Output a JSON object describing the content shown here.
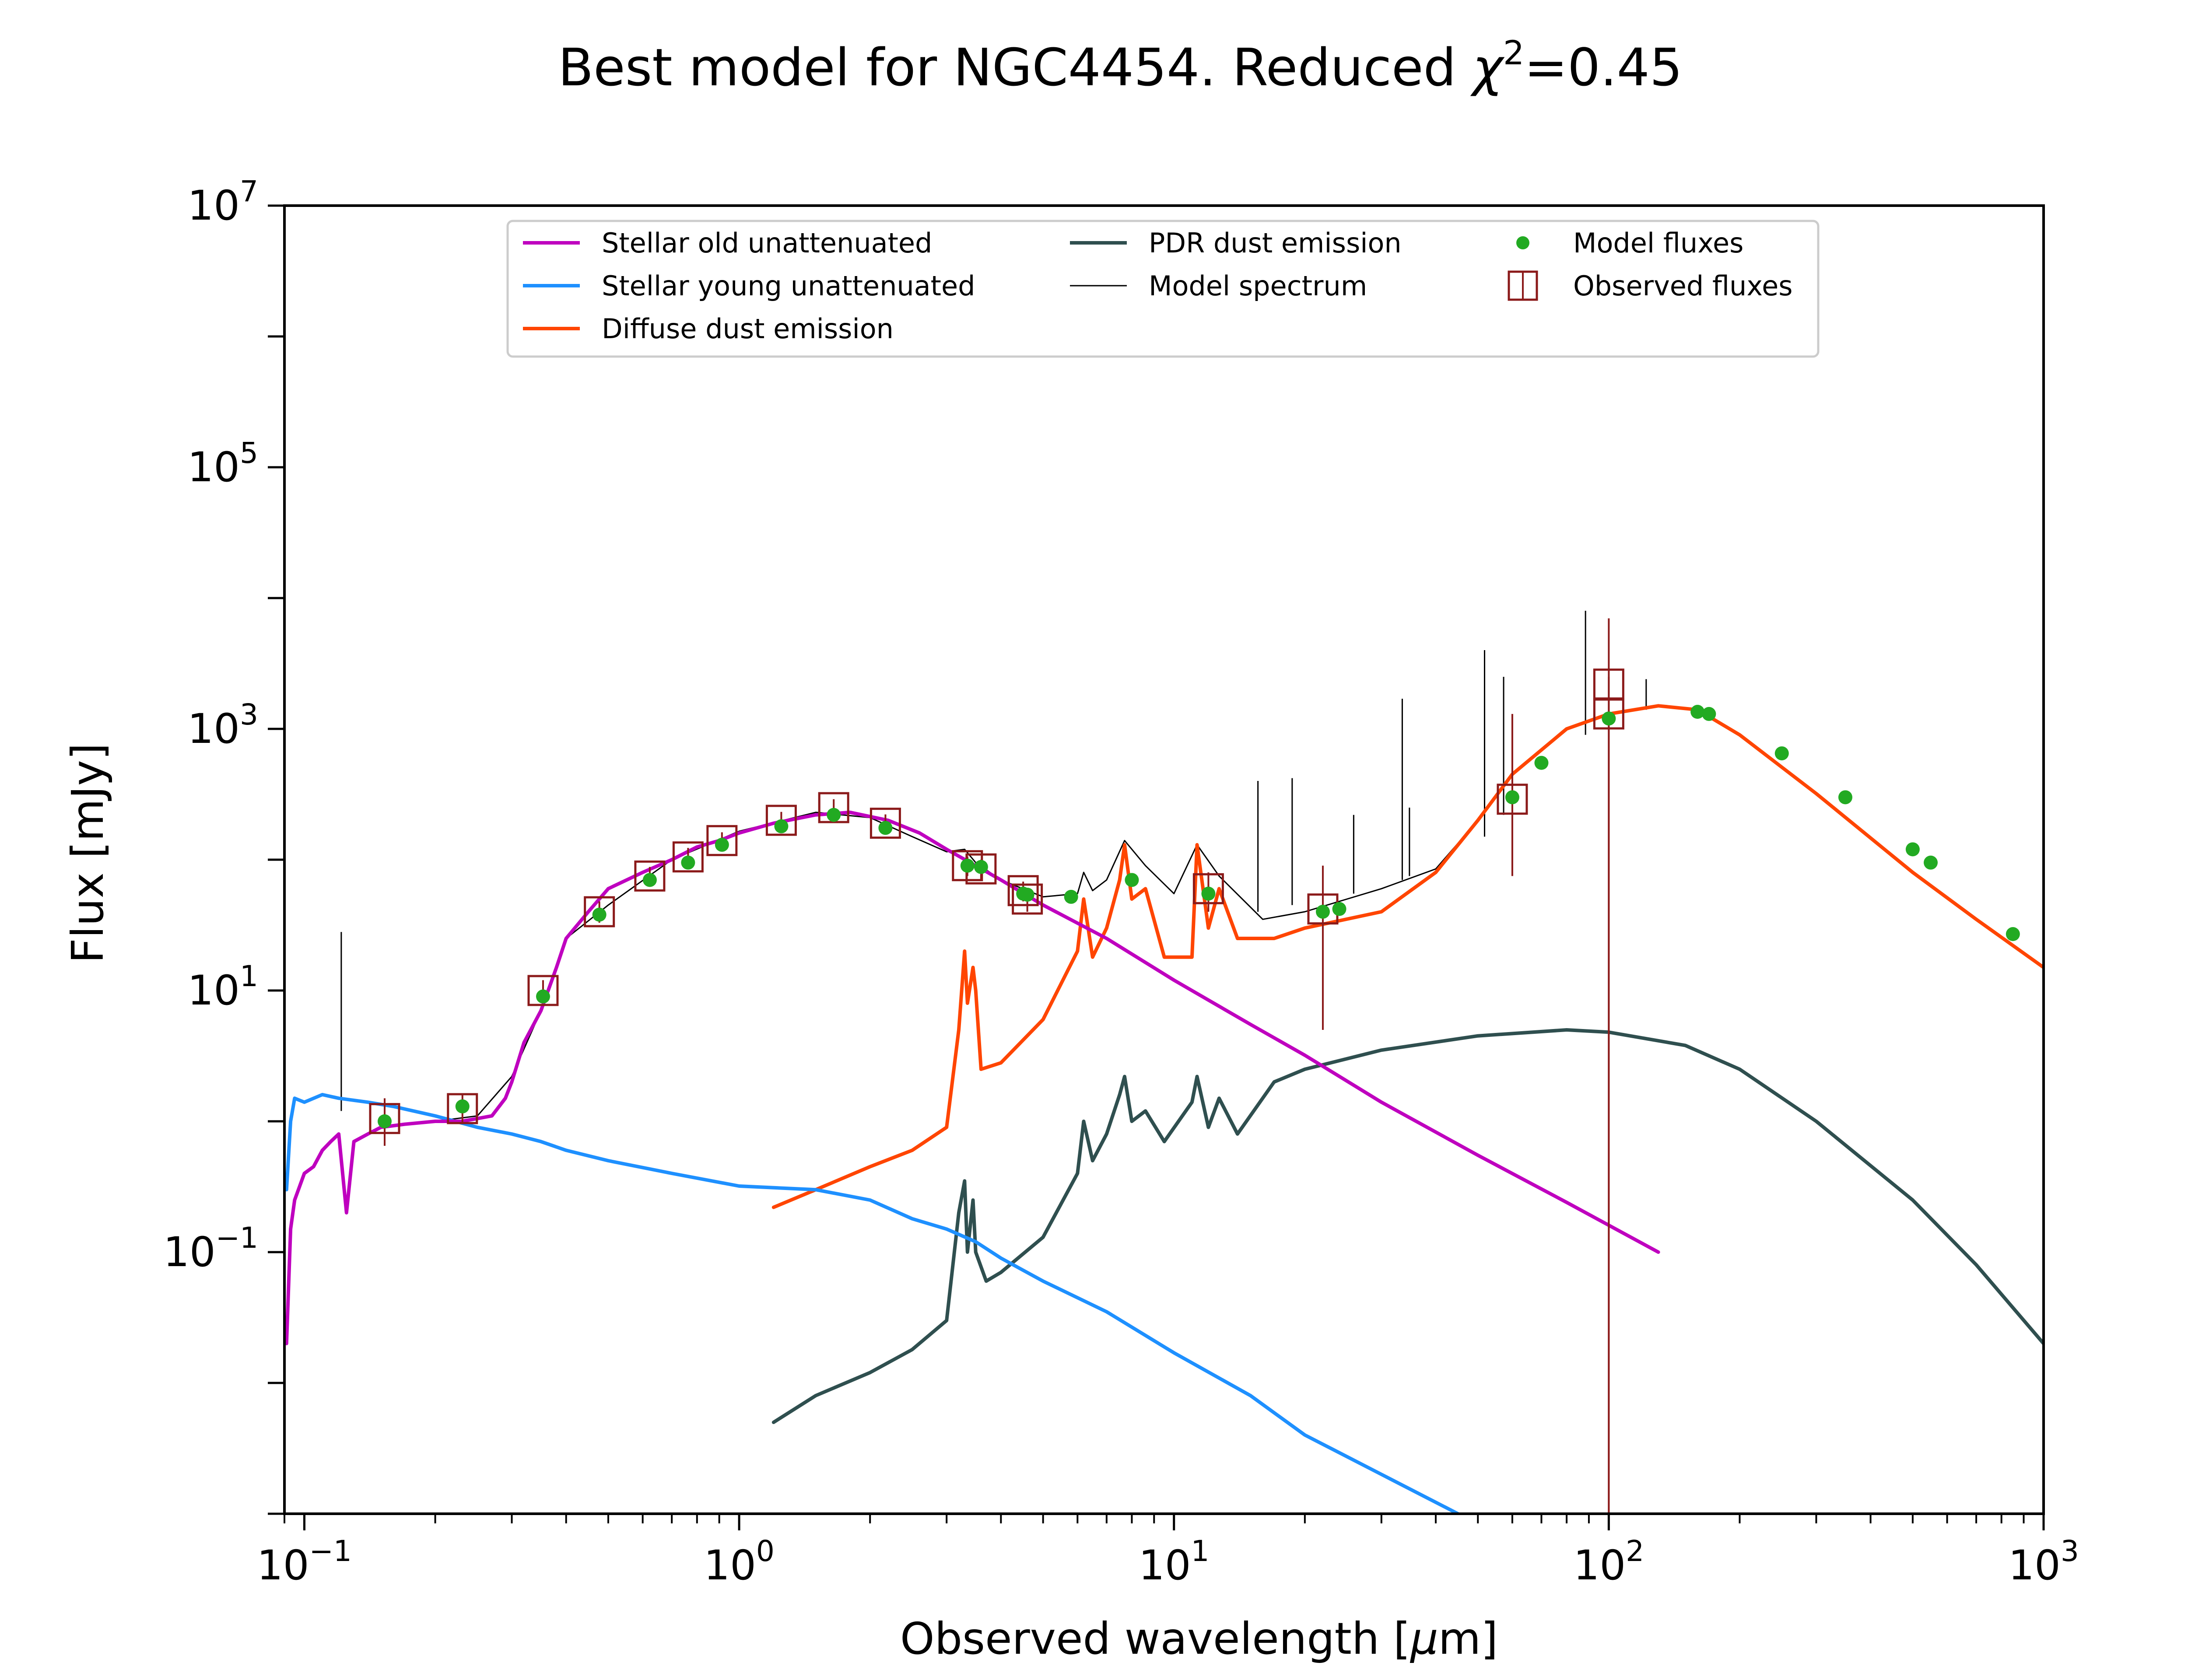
{
  "chart_data": {
    "type": "line",
    "title": "Best model for NGC4454. Reduced χ²=0.45",
    "title_parts": {
      "main": "Best model for NGC4454. Reduced ",
      "symbol": "χ",
      "superscript": "2",
      "tail": "=0.45"
    },
    "xlabel": "Observed wavelength [μm]",
    "xlabel_parts": {
      "main": "Observed wavelength [",
      "mu": "μ",
      "tail": "m]"
    },
    "ylabel": "Flux [mJy]",
    "x_scale": "log",
    "y_scale": "log",
    "xlim": [
      0.09,
      1000
    ],
    "ylim": [
      0.001,
      10000000
    ],
    "x_ticks": [
      {
        "value": 0.1,
        "base": "10",
        "exp": "−1"
      },
      {
        "value": 1,
        "base": "10",
        "exp": "0"
      },
      {
        "value": 10,
        "base": "10",
        "exp": "1"
      },
      {
        "value": 100,
        "base": "10",
        "exp": "2"
      },
      {
        "value": 1000,
        "base": "10",
        "exp": "3"
      }
    ],
    "y_ticks": [
      {
        "value": 0.1,
        "base": "10",
        "exp": "−1"
      },
      {
        "value": 10,
        "base": "10",
        "exp": "1"
      },
      {
        "value": 1000,
        "base": "10",
        "exp": "3"
      },
      {
        "value": 100000,
        "base": "10",
        "exp": "5"
      },
      {
        "value": 10000000,
        "base": "10",
        "exp": "7"
      }
    ],
    "grid": false,
    "legend_position": "top",
    "legend_entries": [
      {
        "label": "Stellar old unattenuated",
        "color": "#bf00bf",
        "kind": "line"
      },
      {
        "label": "Stellar young unattenuated",
        "color": "#1e90ff",
        "kind": "line"
      },
      {
        "label": "Diffuse dust emission",
        "color": "#ff4500",
        "kind": "line"
      },
      {
        "label": "PDR dust emission",
        "color": "#2f4f4f",
        "kind": "line"
      },
      {
        "label": "Model spectrum",
        "color": "#000000",
        "kind": "thin-line"
      },
      {
        "label": "Model fluxes",
        "color": "#22aa22",
        "kind": "dot"
      },
      {
        "label": "Observed fluxes",
        "color": "#8b1a1a",
        "kind": "square"
      }
    ],
    "series": [
      {
        "name": "Stellar old unattenuated",
        "color": "#bf00bf",
        "width": 8,
        "x": [
          0.091,
          0.093,
          0.095,
          0.1,
          0.105,
          0.11,
          0.115,
          0.12,
          0.125,
          0.13,
          0.14,
          0.15,
          0.17,
          0.2,
          0.23,
          0.25,
          0.27,
          0.29,
          0.3,
          0.32,
          0.35,
          0.38,
          0.4,
          0.45,
          0.5,
          0.6,
          0.7,
          0.8,
          0.9,
          1.0,
          1.2,
          1.5,
          1.8,
          2.2,
          2.6,
          3.0,
          3.5,
          4.0,
          5.0,
          7.0,
          10,
          15,
          20,
          30,
          50,
          80,
          130
        ],
        "y": [
          0.02,
          0.15,
          0.25,
          0.4,
          0.45,
          0.6,
          0.7,
          0.8,
          0.2,
          0.7,
          0.8,
          0.9,
          0.95,
          1.0,
          1.0,
          1.05,
          1.1,
          1.5,
          2,
          4,
          7,
          15,
          25,
          40,
          60,
          80,
          100,
          125,
          140,
          160,
          190,
          220,
          230,
          200,
          160,
          120,
          90,
          70,
          45,
          25,
          12,
          5.5,
          3.2,
          1.4,
          0.55,
          0.24,
          0.1
        ]
      },
      {
        "name": "Stellar young unattenuated",
        "color": "#1e90ff",
        "width": 8,
        "x": [
          0.091,
          0.093,
          0.095,
          0.1,
          0.11,
          0.12,
          0.14,
          0.16,
          0.2,
          0.25,
          0.3,
          0.35,
          0.4,
          0.5,
          0.7,
          1.0,
          1.5,
          2.0,
          2.5,
          3.0,
          3.5,
          4.0,
          5.0,
          7.0,
          10,
          15,
          20,
          30,
          45
        ],
        "y": [
          0.3,
          1.0,
          1.5,
          1.4,
          1.6,
          1.5,
          1.4,
          1.3,
          1.1,
          0.9,
          0.8,
          0.7,
          0.6,
          0.5,
          0.4,
          0.32,
          0.3,
          0.25,
          0.18,
          0.15,
          0.12,
          0.09,
          0.06,
          0.035,
          0.017,
          0.008,
          0.004,
          0.002,
          0.001
        ]
      },
      {
        "name": "Diffuse dust emission",
        "color": "#ff4500",
        "width": 8,
        "x": [
          1.2,
          1.5,
          2.0,
          2.5,
          3.0,
          3.2,
          3.3,
          3.35,
          3.45,
          3.5,
          3.6,
          4.0,
          5.0,
          6.0,
          6.2,
          6.5,
          7.0,
          7.5,
          7.7,
          8.0,
          8.6,
          9.5,
          11.0,
          11.3,
          12.0,
          12.7,
          14.0,
          17.0,
          20.0,
          30.0,
          40.0,
          50.0,
          60.0,
          80.0,
          100,
          130,
          160,
          200,
          300,
          500,
          700,
          1000
        ],
        "y": [
          0.22,
          0.3,
          0.45,
          0.6,
          0.9,
          5,
          20,
          8,
          15,
          10,
          2.5,
          2.8,
          6,
          20,
          50,
          18,
          30,
          70,
          130,
          50,
          60,
          18,
          18,
          130,
          30,
          60,
          25,
          25,
          30,
          40,
          80,
          200,
          450,
          1000,
          1300,
          1500,
          1400,
          900,
          320,
          80,
          35,
          15
        ]
      },
      {
        "name": "PDR dust emission",
        "color": "#2f4f4f",
        "width": 8,
        "x": [
          1.2,
          1.5,
          2.0,
          2.5,
          3.0,
          3.2,
          3.3,
          3.35,
          3.45,
          3.5,
          3.7,
          4.0,
          5.0,
          6.0,
          6.2,
          6.5,
          7.0,
          7.5,
          7.7,
          8.0,
          8.6,
          9.5,
          11.0,
          11.3,
          12.0,
          12.7,
          14.0,
          17.0,
          20.0,
          30.0,
          50.0,
          80.0,
          100,
          150,
          200,
          300,
          500,
          700,
          1000
        ],
        "y": [
          0.005,
          0.008,
          0.012,
          0.018,
          0.03,
          0.2,
          0.35,
          0.1,
          0.25,
          0.1,
          0.06,
          0.07,
          0.13,
          0.4,
          1.0,
          0.5,
          0.8,
          1.6,
          2.2,
          1.0,
          1.2,
          0.7,
          1.4,
          2.2,
          0.9,
          1.5,
          0.8,
          2.0,
          2.5,
          3.5,
          4.5,
          5.0,
          4.8,
          3.8,
          2.5,
          1.0,
          0.25,
          0.08,
          0.02
        ]
      },
      {
        "name": "Model spectrum",
        "color": "#000000",
        "width": 3,
        "x": [
          0.2,
          0.25,
          0.3,
          0.35,
          0.4,
          0.5,
          0.7,
          1.0,
          1.5,
          2.0,
          2.5,
          3.0,
          3.3,
          3.5,
          4.0,
          5.0,
          6.0,
          6.2,
          6.5,
          7.0,
          7.7,
          8.6,
          10.0,
          11.3,
          12.7,
          16.0,
          20.0,
          25.0,
          30.0,
          40.0,
          50.0,
          60.0,
          80.0,
          100,
          130,
          160,
          200
        ],
        "y": [
          1.0,
          1.1,
          2.2,
          7,
          25,
          45,
          100,
          165,
          230,
          210,
          150,
          115,
          120,
          95,
          70,
          52,
          55,
          80,
          58,
          70,
          140,
          90,
          55,
          130,
          75,
          35,
          40,
          50,
          60,
          85,
          200,
          450,
          1000,
          1300,
          1500,
          1400,
          900
        ]
      }
    ],
    "emission_lines": [
      {
        "x": 0.1216,
        "y_low": 1.2,
        "y_high": 28
      },
      {
        "x": 15.6,
        "y_low": 40,
        "y_high": 400
      },
      {
        "x": 18.7,
        "y_low": 45,
        "y_high": 420
      },
      {
        "x": 25.9,
        "y_low": 55,
        "y_high": 220
      },
      {
        "x": 33.5,
        "y_low": 70,
        "y_high": 1700
      },
      {
        "x": 34.8,
        "y_low": 75,
        "y_high": 250
      },
      {
        "x": 51.8,
        "y_low": 150,
        "y_high": 4000
      },
      {
        "x": 57.3,
        "y_low": 220,
        "y_high": 2500
      },
      {
        "x": 88.4,
        "y_low": 900,
        "y_high": 8000
      },
      {
        "x": 121.9,
        "y_low": 1400,
        "y_high": 2400
      }
    ],
    "model_fluxes": {
      "color": "#22aa22",
      "x": [
        0.153,
        0.231,
        0.354,
        0.477,
        0.623,
        0.763,
        0.913,
        1.25,
        1.65,
        2.17,
        3.35,
        3.6,
        4.5,
        4.6,
        5.8,
        8.0,
        12.0,
        22.0,
        24.0,
        60.0,
        70.0,
        100,
        160,
        170,
        250,
        350,
        500,
        550,
        850
      ],
      "y": [
        1.0,
        1.3,
        9,
        38,
        70,
        95,
        130,
        180,
        220,
        175,
        90,
        88,
        55,
        54,
        52,
        70,
        55,
        40,
        42,
        300,
        550,
        1200,
        1350,
        1300,
        650,
        300,
        120,
        95,
        27
      ]
    },
    "observed_fluxes": {
      "color": "#8b1a1a",
      "x": [
        0.153,
        0.231,
        0.354,
        0.477,
        0.623,
        0.763,
        0.913,
        1.25,
        1.65,
        2.17,
        3.35,
        3.6,
        4.5,
        4.6,
        12.0,
        22.0,
        60.0,
        100,
        100
      ],
      "y": [
        1.05,
        1.25,
        10,
        40,
        75,
        105,
        140,
        200,
        250,
        190,
        90,
        85,
        58,
        50,
        60,
        42,
        290,
        2200,
        1300
      ],
      "err_low": [
        0.65,
        0.95,
        8,
        33,
        63,
        89,
        120,
        170,
        210,
        160,
        75,
        70,
        48,
        40,
        40,
        5,
        75,
        0.001,
        0.001
      ],
      "err_high": [
        1.5,
        1.6,
        12,
        48,
        88,
        123,
        162,
        232,
        290,
        222,
        106,
        100,
        68,
        60,
        80,
        90,
        1300,
        7000,
        2500
      ]
    }
  }
}
